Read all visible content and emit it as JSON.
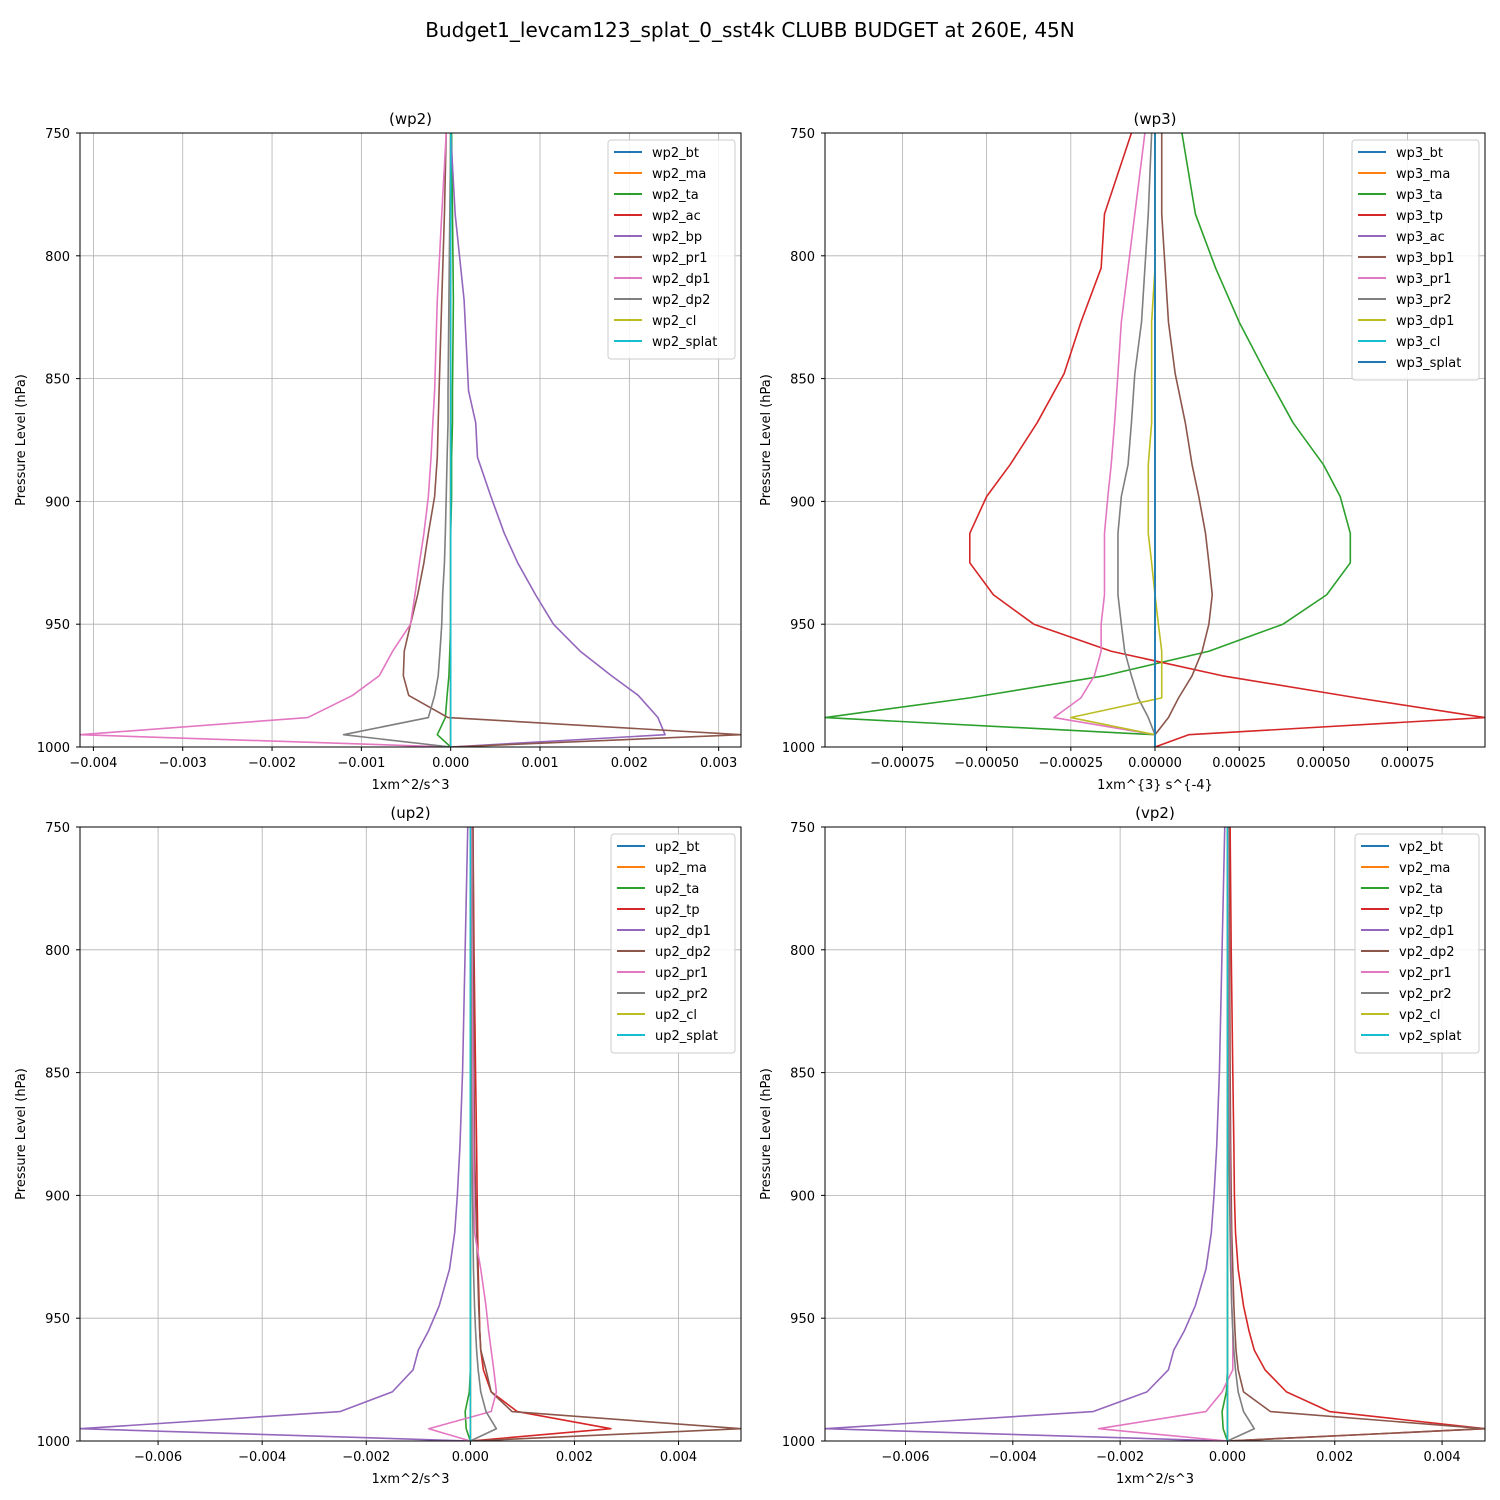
{
  "figure_title": "Budget1_levcam123_splat_0_sst4k CLUBB BUDGET at 260E, 45N",
  "colors": [
    "#1f77b4",
    "#ff7f0e",
    "#2ca02c",
    "#d62728",
    "#9467bd",
    "#8c564b",
    "#e377c2",
    "#7f7f7f",
    "#bcbd22",
    "#17becf"
  ],
  "chart_data": [
    {
      "type": "line",
      "title": "(wp2)",
      "xlabel": "1xm^2/s^3",
      "ylabel": "Pressure Level (hPa)",
      "xlim": [
        -0.00415,
        0.00325
      ],
      "ylim": [
        1000,
        750
      ],
      "xticks": [
        -0.004,
        -0.003,
        -0.002,
        -0.001,
        0.0,
        0.001,
        0.002,
        0.003
      ],
      "xtick_labels": [
        "−0.004",
        "−0.003",
        "−0.002",
        "−0.001",
        "0.000",
        "0.001",
        "0.002",
        "0.003"
      ],
      "yticks": [
        750,
        800,
        850,
        900,
        950,
        1000
      ],
      "ytick_labels": [
        "750",
        "800",
        "850",
        "900",
        "950",
        "1000"
      ],
      "grid": true,
      "legend_position": "upper right",
      "levels": [
        750,
        783,
        818,
        855,
        868,
        882,
        898,
        913,
        925,
        938,
        950,
        961,
        971,
        979,
        988,
        995,
        1000
      ],
      "series": [
        {
          "name": "wp2_bt",
          "values": [
            0,
            0,
            0,
            0,
            0,
            0,
            0,
            0,
            0,
            0,
            0,
            0,
            0,
            0,
            0,
            0,
            0
          ]
        },
        {
          "name": "wp2_ma",
          "values": [
            0,
            0,
            0,
            0,
            0,
            0,
            0,
            0,
            0,
            0,
            0,
            0,
            0,
            0,
            0,
            0,
            0
          ]
        },
        {
          "name": "wp2_ta",
          "values": [
            1e-05,
            2e-05,
            3e-05,
            2e-05,
            2e-05,
            1e-05,
            1e-05,
            0,
            0,
            0,
            0,
            -1e-05,
            -2e-05,
            -4e-05,
            -6e-05,
            -0.00015,
            0
          ]
        },
        {
          "name": "wp2_ac",
          "values": [
            0,
            0,
            0,
            0,
            0,
            0,
            0,
            0,
            0,
            0,
            0,
            0,
            0,
            0,
            0,
            0,
            0
          ]
        },
        {
          "name": "wp2_bp",
          "values": [
            0,
            5e-05,
            0.00015,
            0.0002,
            0.00028,
            0.0003,
            0.00045,
            0.0006,
            0.00075,
            0.00095,
            0.00115,
            0.00145,
            0.0018,
            0.0021,
            0.00232,
            0.0024,
            0
          ]
        },
        {
          "name": "wp2_pr1",
          "values": [
            -5e-05,
            -7e-05,
            -0.0001,
            -0.00013,
            -0.00014,
            -0.00015,
            -0.00018,
            -0.00025,
            -0.0003,
            -0.00037,
            -0.00045,
            -0.00052,
            -0.00053,
            -0.00047,
            -3e-05,
            0.00325,
            0
          ]
        },
        {
          "name": "wp2_dp1",
          "values": [
            -5e-05,
            -0.0001,
            -0.00015,
            -0.00018,
            -0.0002,
            -0.00022,
            -0.00025,
            -0.0003,
            -0.00035,
            -0.0004,
            -0.00045,
            -0.00065,
            -0.0008,
            -0.0011,
            -0.0016,
            -0.00415,
            0
          ]
        },
        {
          "name": "wp2_dp2",
          "values": [
            0,
            -1e-05,
            -2e-05,
            -3e-05,
            -3e-05,
            -4e-05,
            -5e-05,
            -6e-05,
            -7e-05,
            -9e-05,
            -0.0001,
            -0.00012,
            -0.00014,
            -0.00018,
            -0.00025,
            -0.0012,
            0
          ]
        },
        {
          "name": "wp2_cl",
          "values": [
            0,
            0,
            0,
            0,
            0,
            0,
            0,
            0,
            0,
            0,
            0,
            0,
            0,
            0,
            0,
            0,
            0
          ]
        },
        {
          "name": "wp2_splat",
          "values": [
            0,
            0,
            0,
            0,
            0,
            0,
            0,
            0,
            0,
            0,
            0,
            0,
            0,
            0,
            0,
            0,
            0
          ]
        }
      ]
    },
    {
      "type": "line",
      "title": "(wp3)",
      "xlabel": "1xm^{3} s^{-4}",
      "ylabel": "Pressure Level (hPa)",
      "xlim": [
        -0.00098,
        0.00098
      ],
      "ylim": [
        1000,
        750
      ],
      "xticks": [
        -0.00075,
        -0.0005,
        -0.00025,
        0.0,
        0.00025,
        0.0005,
        0.00075
      ],
      "xtick_labels": [
        "−0.00075",
        "−0.00050",
        "−0.00025",
        "0.00000",
        "0.00025",
        "0.00050",
        "0.00075"
      ],
      "yticks": [
        750,
        800,
        850,
        900,
        950,
        1000
      ],
      "ytick_labels": [
        "750",
        "800",
        "850",
        "900",
        "950",
        "1000"
      ],
      "grid": true,
      "legend_position": "upper right",
      "levels": [
        750,
        783,
        805,
        827,
        848,
        868,
        885,
        898,
        913,
        925,
        938,
        950,
        961,
        971,
        980,
        988,
        995,
        1000
      ],
      "series": [
        {
          "name": "wp3_bt",
          "values": [
            0,
            0,
            0,
            0,
            0,
            0,
            0,
            0,
            0,
            0,
            0,
            0,
            0,
            0,
            0,
            0,
            0,
            0
          ]
        },
        {
          "name": "wp3_ma",
          "values": [
            0,
            0,
            0,
            0,
            0,
            0,
            0,
            0,
            0,
            0,
            0,
            0,
            0,
            0,
            0,
            0,
            0,
            0
          ]
        },
        {
          "name": "wp3_ta",
          "values": [
            8e-05,
            0.00012,
            0.00018,
            0.00025,
            0.00033,
            0.00041,
            0.0005,
            0.00055,
            0.00058,
            0.00058,
            0.00051,
            0.00038,
            0.00016,
            -0.00015,
            -0.00055,
            -0.00098,
            0,
            0
          ]
        },
        {
          "name": "wp3_tp",
          "values": [
            -7e-05,
            -0.00015,
            -0.00016,
            -0.00022,
            -0.00027,
            -0.00035,
            -0.00043,
            -0.0005,
            -0.00055,
            -0.00055,
            -0.00048,
            -0.00036,
            -0.00013,
            0.0002,
            0.0006,
            0.00098,
            0.0001,
            0
          ]
        },
        {
          "name": "wp3_ac",
          "values": [
            0,
            0,
            0,
            0,
            0,
            0,
            0,
            0,
            0,
            0,
            0,
            0,
            0,
            0,
            0,
            0,
            0,
            0
          ]
        },
        {
          "name": "wp3_bp1",
          "values": [
            2e-05,
            2e-05,
            3e-05,
            4e-05,
            6e-05,
            9e-05,
            0.00011,
            0.00013,
            0.00015,
            0.00016,
            0.00017,
            0.00016,
            0.00014,
            0.00011,
            7e-05,
            4e-05,
            0,
            0
          ]
        },
        {
          "name": "wp3_pr1",
          "values": [
            -3e-05,
            -6e-05,
            -8e-05,
            -0.0001,
            -0.00011,
            -0.00012,
            -0.00013,
            -0.00014,
            -0.00015,
            -0.00015,
            -0.00015,
            -0.00016,
            -0.00016,
            -0.00018,
            -0.00022,
            -0.0003,
            0,
            0
          ]
        },
        {
          "name": "wp3_pr2",
          "values": [
            -1e-05,
            -2e-05,
            -3e-05,
            -4e-05,
            -6e-05,
            -7e-05,
            -8e-05,
            -0.0001,
            -0.00011,
            -0.00011,
            -0.00011,
            -0.0001,
            -9e-05,
            -7e-05,
            -5e-05,
            -2e-05,
            0,
            0
          ]
        },
        {
          "name": "wp3_dp1",
          "values": [
            0,
            0,
            0,
            -1e-05,
            -1e-05,
            -1e-05,
            -2e-05,
            -2e-05,
            -2e-05,
            -1e-05,
            0,
            1e-05,
            2e-05,
            2e-05,
            2e-05,
            -0.00025,
            0,
            0
          ]
        },
        {
          "name": "wp3_cl",
          "values": [
            0,
            0,
            0,
            0,
            0,
            0,
            0,
            0,
            0,
            0,
            0,
            0,
            0,
            0,
            0,
            0,
            0,
            0
          ]
        },
        {
          "name": "wp3_splat",
          "values": [
            0,
            0,
            0,
            0,
            0,
            0,
            0,
            0,
            0,
            0,
            0,
            0,
            0,
            0,
            0,
            0,
            0,
            0
          ]
        }
      ]
    },
    {
      "type": "line",
      "title": "(up2)",
      "xlabel": "1xm^2/s^3",
      "ylabel": "Pressure Level (hPa)",
      "xlim": [
        -0.0075,
        0.0052
      ],
      "ylim": [
        1000,
        750
      ],
      "xticks": [
        -0.006,
        -0.004,
        -0.002,
        0.0,
        0.002,
        0.004
      ],
      "xtick_labels": [
        "−0.006",
        "−0.004",
        "−0.002",
        "0.000",
        "0.002",
        "0.004"
      ],
      "yticks": [
        750,
        800,
        850,
        900,
        950,
        1000
      ],
      "ytick_labels": [
        "750",
        "800",
        "850",
        "900",
        "950",
        "1000"
      ],
      "grid": true,
      "legend_position": "upper right",
      "levels": [
        750,
        800,
        850,
        880,
        900,
        915,
        930,
        945,
        955,
        963,
        971,
        980,
        988,
        995,
        1000
      ],
      "series": [
        {
          "name": "up2_bt",
          "values": [
            0,
            0,
            0,
            0,
            0,
            0,
            0,
            0,
            0,
            0,
            0,
            0,
            0,
            0,
            0
          ]
        },
        {
          "name": "up2_ma",
          "values": [
            0,
            0,
            0,
            0,
            0,
            0,
            0,
            0,
            0,
            0,
            0,
            0,
            0,
            0,
            0
          ]
        },
        {
          "name": "up2_ta",
          "values": [
            0,
            0,
            0,
            0,
            0,
            0,
            0,
            0,
            0,
            0,
            0,
            -2e-05,
            -0.0001,
            -8e-05,
            0
          ]
        },
        {
          "name": "up2_tp",
          "values": [
            5e-05,
            7e-05,
            0.0001,
            0.00012,
            0.00013,
            0.00014,
            0.00015,
            0.00017,
            0.00018,
            0.0002,
            0.00025,
            0.0004,
            0.0009,
            0.0027,
            0
          ]
        },
        {
          "name": "up2_dp1",
          "values": [
            -5e-05,
            -0.0001,
            -0.00015,
            -0.0002,
            -0.00025,
            -0.0003,
            -0.0004,
            -0.0006,
            -0.0008,
            -0.001,
            -0.0011,
            -0.0015,
            -0.0025,
            -0.0075,
            0
          ]
        },
        {
          "name": "up2_dp2",
          "values": [
            5e-05,
            6e-05,
            7e-05,
            8e-05,
            0.0001,
            0.00012,
            0.00014,
            0.00016,
            0.00018,
            0.0002,
            0.0003,
            0.0004,
            0.0008,
            0.0052,
            0
          ]
        },
        {
          "name": "up2_pr1",
          "values": [
            2e-05,
            3e-05,
            5e-05,
            6e-05,
            7e-05,
            8e-05,
            0.0002,
            0.0003,
            0.00035,
            0.0004,
            0.00045,
            0.0005,
            0.0004,
            -0.0008,
            0
          ]
        },
        {
          "name": "up2_pr2",
          "values": [
            0,
            1e-05,
            2e-05,
            3e-05,
            4e-05,
            5e-05,
            6e-05,
            8e-05,
            0.0001,
            0.00012,
            0.00015,
            0.0002,
            0.0003,
            0.0005,
            0
          ]
        },
        {
          "name": "up2_cl",
          "values": [
            0,
            0,
            0,
            0,
            0,
            0,
            0,
            0,
            0,
            0,
            0,
            0,
            0,
            0,
            0
          ]
        },
        {
          "name": "up2_splat",
          "values": [
            0,
            0,
            0,
            0,
            0,
            0,
            0,
            0,
            0,
            0,
            0,
            0,
            0,
            0,
            0
          ]
        }
      ]
    },
    {
      "type": "line",
      "title": "(vp2)",
      "xlabel": "1xm^2/s^3",
      "ylabel": "Pressure Level (hPa)",
      "xlim": [
        -0.0075,
        0.0048
      ],
      "ylim": [
        1000,
        750
      ],
      "xticks": [
        -0.006,
        -0.004,
        -0.002,
        0.0,
        0.002,
        0.004
      ],
      "xtick_labels": [
        "−0.006",
        "−0.004",
        "−0.002",
        "0.000",
        "0.002",
        "0.004"
      ],
      "yticks": [
        750,
        800,
        850,
        900,
        950,
        1000
      ],
      "ytick_labels": [
        "750",
        "800",
        "850",
        "900",
        "950",
        "1000"
      ],
      "grid": true,
      "legend_position": "upper right",
      "levels": [
        750,
        800,
        850,
        880,
        900,
        915,
        930,
        945,
        955,
        963,
        971,
        980,
        988,
        995,
        1000
      ],
      "series": [
        {
          "name": "vp2_bt",
          "values": [
            0,
            0,
            0,
            0,
            0,
            0,
            0,
            0,
            0,
            0,
            0,
            0,
            0,
            0,
            0
          ]
        },
        {
          "name": "vp2_ma",
          "values": [
            0,
            0,
            0,
            0,
            0,
            0,
            0,
            0,
            0,
            0,
            0,
            0,
            0,
            0,
            0
          ]
        },
        {
          "name": "vp2_ta",
          "values": [
            0,
            0,
            0,
            0,
            0,
            0,
            0,
            0,
            0,
            0,
            0,
            -2e-05,
            -0.0001,
            -8e-05,
            0
          ]
        },
        {
          "name": "vp2_tp",
          "values": [
            5e-05,
            7e-05,
            0.0001,
            0.00012,
            0.00013,
            0.00015,
            0.0002,
            0.0003,
            0.0004,
            0.0005,
            0.0007,
            0.0011,
            0.0019,
            0.0048,
            0
          ]
        },
        {
          "name": "vp2_dp1",
          "values": [
            -5e-05,
            -0.0001,
            -0.00015,
            -0.0002,
            -0.00025,
            -0.0003,
            -0.0004,
            -0.0006,
            -0.0008,
            -0.001,
            -0.0011,
            -0.0015,
            -0.0025,
            -0.0075,
            0
          ]
        },
        {
          "name": "vp2_dp2",
          "values": [
            3e-05,
            4e-05,
            5e-05,
            6e-05,
            7e-05,
            8e-05,
            0.0001,
            0.00012,
            0.00014,
            0.00016,
            0.0002,
            0.0003,
            0.0008,
            0.0048,
            0
          ]
        },
        {
          "name": "vp2_pr1",
          "values": [
            1e-05,
            2e-05,
            3e-05,
            4e-05,
            5e-05,
            6e-05,
            7e-05,
            8e-05,
            0.0001,
            0.0001,
            0.0001,
            -0.0001,
            -0.0004,
            -0.0024,
            0
          ]
        },
        {
          "name": "vp2_pr2",
          "values": [
            0,
            1e-05,
            2e-05,
            3e-05,
            4e-05,
            5e-05,
            6e-05,
            8e-05,
            0.0001,
            0.00012,
            0.00015,
            0.0002,
            0.0003,
            0.0005,
            0
          ]
        },
        {
          "name": "vp2_cl",
          "values": [
            0,
            0,
            0,
            0,
            0,
            0,
            0,
            0,
            0,
            0,
            0,
            0,
            0,
            0,
            0
          ]
        },
        {
          "name": "vp2_splat",
          "values": [
            0,
            0,
            0,
            0,
            0,
            0,
            0,
            0,
            0,
            0,
            0,
            0,
            0,
            0,
            0
          ]
        }
      ]
    }
  ]
}
